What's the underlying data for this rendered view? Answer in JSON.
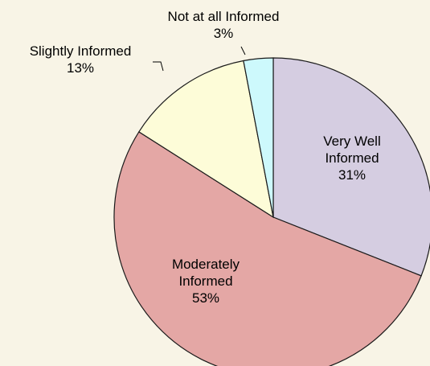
{
  "chart_data": {
    "type": "pie",
    "categories": [
      "Very Well Informed",
      "Moderately Informed",
      "Slightly Informed",
      "Not at all Informed"
    ],
    "values": [
      31,
      53,
      13,
      3
    ],
    "value_labels": [
      "31%",
      "53%",
      "13%",
      "3%"
    ],
    "colors": [
      "#d5cde1",
      "#e4a7a5",
      "#fdfcd8",
      "#cdf9fc"
    ]
  }
}
